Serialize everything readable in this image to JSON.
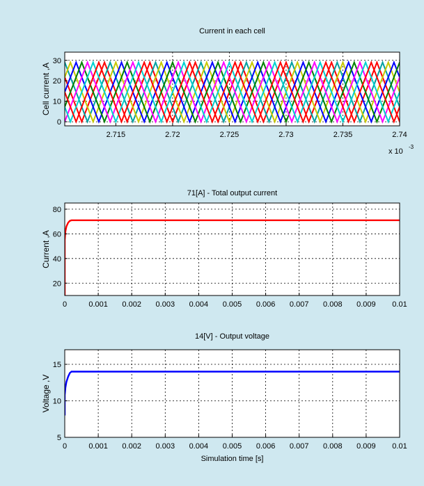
{
  "colors": {
    "figure_bg": "#cfe8f0",
    "axes_bg": "#ffffff",
    "grid": "#000000",
    "text": "#000000",
    "cell_series": [
      "#ff0000",
      "#00a0a0",
      "#c8c800",
      "#0000ff",
      "#008000",
      "#ff00ff",
      "#00d0d0",
      "#ff0000"
    ],
    "current": "#ff0000",
    "voltage": "#0000ff"
  },
  "chart_data": [
    {
      "type": "line",
      "title": "Current in each cell",
      "xlabel": "",
      "ylabel": "Cell current ,A",
      "x_exponent_label": "x 10",
      "x_exponent_power": "-3",
      "xlim": [
        2.7105,
        2.74
      ],
      "ylim": [
        -2,
        34
      ],
      "xticks": [
        2.715,
        2.72,
        2.725,
        2.73,
        2.735,
        2.74
      ],
      "xtick_labels": [
        "2.715",
        "2.72",
        "2.725",
        "2.73",
        "2.735",
        "2.74"
      ],
      "yticks": [
        0,
        10,
        20,
        30
      ],
      "ytick_labels": [
        "0",
        "10",
        "20",
        "30"
      ],
      "grid": true,
      "waveform": {
        "shape": "triangle",
        "min": 0,
        "peak": 29,
        "period": 0.004,
        "rise": 0.002,
        "fall": 0.002,
        "phase_count": 8,
        "phase_step": 0.0005
      }
    },
    {
      "type": "line",
      "title": "71[A] - Total output current",
      "xlabel": "",
      "ylabel": "Current ,A",
      "xlim": [
        0,
        0.01
      ],
      "ylim": [
        10,
        85
      ],
      "xticks": [
        0,
        0.001,
        0.002,
        0.003,
        0.004,
        0.005,
        0.006,
        0.007,
        0.008,
        0.009,
        0.01
      ],
      "xtick_labels": [
        "0",
        "0.001",
        "0.002",
        "0.003",
        "0.004",
        "0.005",
        "0.006",
        "0.007",
        "0.008",
        "0.009",
        "0.01"
      ],
      "yticks": [
        20,
        40,
        60,
        80
      ],
      "ytick_labels": [
        "20",
        "40",
        "60",
        "80"
      ],
      "grid": true,
      "series": [
        {
          "x": [
            0,
            0,
            2e-05,
            5e-05,
            0.0001,
            0.00015,
            0.0002,
            0.0003,
            0.01
          ],
          "y": [
            10,
            55,
            62,
            66,
            69,
            70.5,
            71,
            71,
            71
          ]
        }
      ]
    },
    {
      "type": "line",
      "title": "14[V] - Output voltage",
      "xlabel": "Simulation time [s]",
      "ylabel": "Voltage ,V",
      "xlim": [
        0,
        0.01
      ],
      "ylim": [
        5,
        17
      ],
      "xticks": [
        0,
        0.001,
        0.002,
        0.003,
        0.004,
        0.005,
        0.006,
        0.007,
        0.008,
        0.009,
        0.01
      ],
      "xtick_labels": [
        "0",
        "0.001",
        "0.002",
        "0.003",
        "0.004",
        "0.005",
        "0.006",
        "0.007",
        "0.008",
        "0.009",
        "0.01"
      ],
      "yticks": [
        5,
        10,
        15
      ],
      "ytick_labels": [
        "5",
        "10",
        "15"
      ],
      "grid": true,
      "series": [
        {
          "x": [
            0,
            0,
            2e-05,
            5e-05,
            0.0001,
            0.00015,
            0.0002,
            0.0003,
            0.01
          ],
          "y": [
            8,
            10.8,
            11.8,
            12.6,
            13.3,
            13.8,
            14,
            14,
            14
          ]
        }
      ]
    }
  ]
}
